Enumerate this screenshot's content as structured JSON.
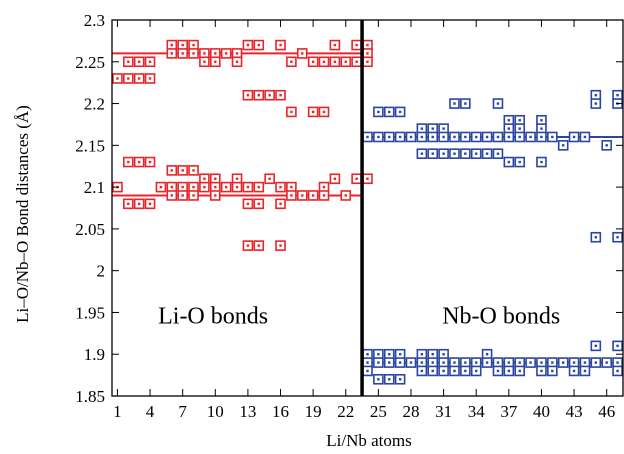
{
  "chart_data": {
    "type": "scatter",
    "xlabel": "Li/Nb atoms",
    "ylabel": "Li–O/Nb–O Bond distances  (Å)",
    "xlim": [
      0.5,
      47.5
    ],
    "ylim": [
      1.85,
      2.3
    ],
    "x_ticks": [
      1,
      4,
      7,
      10,
      13,
      16,
      19,
      22,
      25,
      28,
      31,
      34,
      37,
      40,
      43,
      46
    ],
    "y_ticks": [
      1.85,
      1.9,
      1.95,
      2.0,
      2.05,
      2.1,
      2.15,
      2.2,
      2.25,
      2.3
    ],
    "y_tick_labels": [
      "1.85",
      "1.9",
      "1.95",
      "2",
      "2.05",
      "2.1",
      "2.15",
      "2.2",
      "2.25",
      "2.3"
    ],
    "divider_x": 23.5,
    "colors": {
      "li": "#e8242a",
      "nb": "#2a45a5",
      "divider": "#000000"
    },
    "annotations": [
      {
        "text": "Li-O bonds",
        "x": 9.8,
        "y": 1.937,
        "key": "li"
      },
      {
        "text": "Nb-O bonds",
        "x": 36.3,
        "y": 1.937,
        "key": "nb"
      }
    ],
    "series": [
      {
        "key": "li",
        "points": [
          [
            1,
            2.23
          ],
          [
            1,
            2.1
          ],
          [
            2,
            2.25
          ],
          [
            2,
            2.23
          ],
          [
            2,
            2.13
          ],
          [
            2,
            2.08
          ],
          [
            3,
            2.25
          ],
          [
            3,
            2.23
          ],
          [
            3,
            2.13
          ],
          [
            3,
            2.08
          ],
          [
            4,
            2.25
          ],
          [
            4,
            2.23
          ],
          [
            4,
            2.13
          ],
          [
            4,
            2.08
          ],
          [
            5,
            2.1
          ],
          [
            6,
            2.27
          ],
          [
            6,
            2.26
          ],
          [
            6,
            2.12
          ],
          [
            6,
            2.1
          ],
          [
            6,
            2.09
          ],
          [
            7,
            2.27
          ],
          [
            7,
            2.26
          ],
          [
            7,
            2.12
          ],
          [
            7,
            2.1
          ],
          [
            7,
            2.09
          ],
          [
            8,
            2.27
          ],
          [
            8,
            2.26
          ],
          [
            8,
            2.12
          ],
          [
            8,
            2.1
          ],
          [
            8,
            2.09
          ],
          [
            9,
            2.26
          ],
          [
            9,
            2.25
          ],
          [
            9,
            2.11
          ],
          [
            9,
            2.1
          ],
          [
            10,
            2.26
          ],
          [
            10,
            2.25
          ],
          [
            10,
            2.11
          ],
          [
            10,
            2.1
          ],
          [
            10,
            2.09
          ],
          [
            11,
            2.26
          ],
          [
            11,
            2.1
          ],
          [
            12,
            2.26
          ],
          [
            12,
            2.25
          ],
          [
            12,
            2.11
          ],
          [
            12,
            2.1
          ],
          [
            13,
            2.27
          ],
          [
            13,
            2.21
          ],
          [
            13,
            2.1
          ],
          [
            13,
            2.08
          ],
          [
            13,
            2.03
          ],
          [
            14,
            2.27
          ],
          [
            14,
            2.21
          ],
          [
            14,
            2.1
          ],
          [
            14,
            2.08
          ],
          [
            14,
            2.03
          ],
          [
            15,
            2.21
          ],
          [
            15,
            2.11
          ],
          [
            16,
            2.27
          ],
          [
            16,
            2.21
          ],
          [
            16,
            2.1
          ],
          [
            16,
            2.08
          ],
          [
            16,
            2.03
          ],
          [
            17,
            2.25
          ],
          [
            17,
            2.19
          ],
          [
            17,
            2.1
          ],
          [
            17,
            2.09
          ],
          [
            18,
            2.26
          ],
          [
            18,
            2.09
          ],
          [
            19,
            2.25
          ],
          [
            19,
            2.19
          ],
          [
            19,
            2.09
          ],
          [
            20,
            2.25
          ],
          [
            20,
            2.19
          ],
          [
            20,
            2.1
          ],
          [
            20,
            2.09
          ],
          [
            21,
            2.27
          ],
          [
            21,
            2.25
          ],
          [
            21,
            2.11
          ],
          [
            22,
            2.25
          ],
          [
            22,
            2.09
          ],
          [
            23,
            2.27
          ],
          [
            23,
            2.25
          ],
          [
            23,
            2.11
          ],
          [
            24,
            2.27
          ],
          [
            24,
            2.26
          ],
          [
            24,
            2.25
          ],
          [
            24,
            2.11
          ]
        ],
        "mean": 2.26,
        "mean2": 2.09
      },
      {
        "key": "nb",
        "points": [
          [
            24,
            1.9
          ],
          [
            24,
            1.89
          ],
          [
            24,
            1.88
          ],
          [
            24,
            2.16
          ],
          [
            25,
            2.19
          ],
          [
            25,
            2.16
          ],
          [
            25,
            1.9
          ],
          [
            25,
            1.89
          ],
          [
            25,
            1.87
          ],
          [
            26,
            2.19
          ],
          [
            26,
            2.16
          ],
          [
            26,
            1.9
          ],
          [
            26,
            1.89
          ],
          [
            26,
            1.87
          ],
          [
            27,
            2.19
          ],
          [
            27,
            2.16
          ],
          [
            27,
            1.9
          ],
          [
            27,
            1.89
          ],
          [
            27,
            1.87
          ],
          [
            28,
            2.16
          ],
          [
            28,
            1.89
          ],
          [
            29,
            2.17
          ],
          [
            29,
            2.16
          ],
          [
            29,
            2.14
          ],
          [
            29,
            1.9
          ],
          [
            29,
            1.89
          ],
          [
            29,
            1.88
          ],
          [
            30,
            2.17
          ],
          [
            30,
            2.16
          ],
          [
            30,
            2.14
          ],
          [
            30,
            1.9
          ],
          [
            30,
            1.89
          ],
          [
            30,
            1.88
          ],
          [
            31,
            2.17
          ],
          [
            31,
            2.16
          ],
          [
            31,
            2.14
          ],
          [
            31,
            1.9
          ],
          [
            31,
            1.89
          ],
          [
            31,
            1.88
          ],
          [
            32,
            2.2
          ],
          [
            32,
            2.16
          ],
          [
            32,
            2.14
          ],
          [
            32,
            1.89
          ],
          [
            32,
            1.88
          ],
          [
            33,
            2.2
          ],
          [
            33,
            2.16
          ],
          [
            33,
            2.14
          ],
          [
            33,
            1.89
          ],
          [
            33,
            1.88
          ],
          [
            34,
            2.16
          ],
          [
            34,
            2.14
          ],
          [
            34,
            1.89
          ],
          [
            34,
            1.88
          ],
          [
            35,
            2.16
          ],
          [
            35,
            2.14
          ],
          [
            35,
            1.9
          ],
          [
            35,
            1.89
          ],
          [
            36,
            2.2
          ],
          [
            36,
            2.16
          ],
          [
            36,
            2.14
          ],
          [
            36,
            1.89
          ],
          [
            36,
            1.88
          ],
          [
            37,
            2.18
          ],
          [
            37,
            2.17
          ],
          [
            37,
            2.16
          ],
          [
            37,
            2.13
          ],
          [
            37,
            1.89
          ],
          [
            37,
            1.88
          ],
          [
            38,
            2.18
          ],
          [
            38,
            2.17
          ],
          [
            38,
            2.16
          ],
          [
            38,
            2.13
          ],
          [
            38,
            1.89
          ],
          [
            38,
            1.88
          ],
          [
            39,
            2.16
          ],
          [
            39,
            1.89
          ],
          [
            40,
            2.18
          ],
          [
            40,
            2.17
          ],
          [
            40,
            2.16
          ],
          [
            40,
            2.13
          ],
          [
            40,
            1.89
          ],
          [
            40,
            1.88
          ],
          [
            41,
            2.16
          ],
          [
            41,
            1.89
          ],
          [
            41,
            1.88
          ],
          [
            42,
            2.15
          ],
          [
            42,
            1.89
          ],
          [
            43,
            2.16
          ],
          [
            43,
            1.89
          ],
          [
            43,
            1.88
          ],
          [
            44,
            2.16
          ],
          [
            44,
            1.89
          ],
          [
            44,
            1.88
          ],
          [
            45,
            2.21
          ],
          [
            45,
            2.2
          ],
          [
            45,
            2.04
          ],
          [
            45,
            1.91
          ],
          [
            45,
            1.89
          ],
          [
            46,
            2.15
          ],
          [
            46,
            1.89
          ],
          [
            47,
            2.21
          ],
          [
            47,
            2.2
          ],
          [
            47,
            2.04
          ],
          [
            47,
            1.91
          ],
          [
            47,
            1.89
          ],
          [
            47,
            1.88
          ]
        ],
        "mean": 2.16,
        "mean2": 1.89
      }
    ]
  }
}
